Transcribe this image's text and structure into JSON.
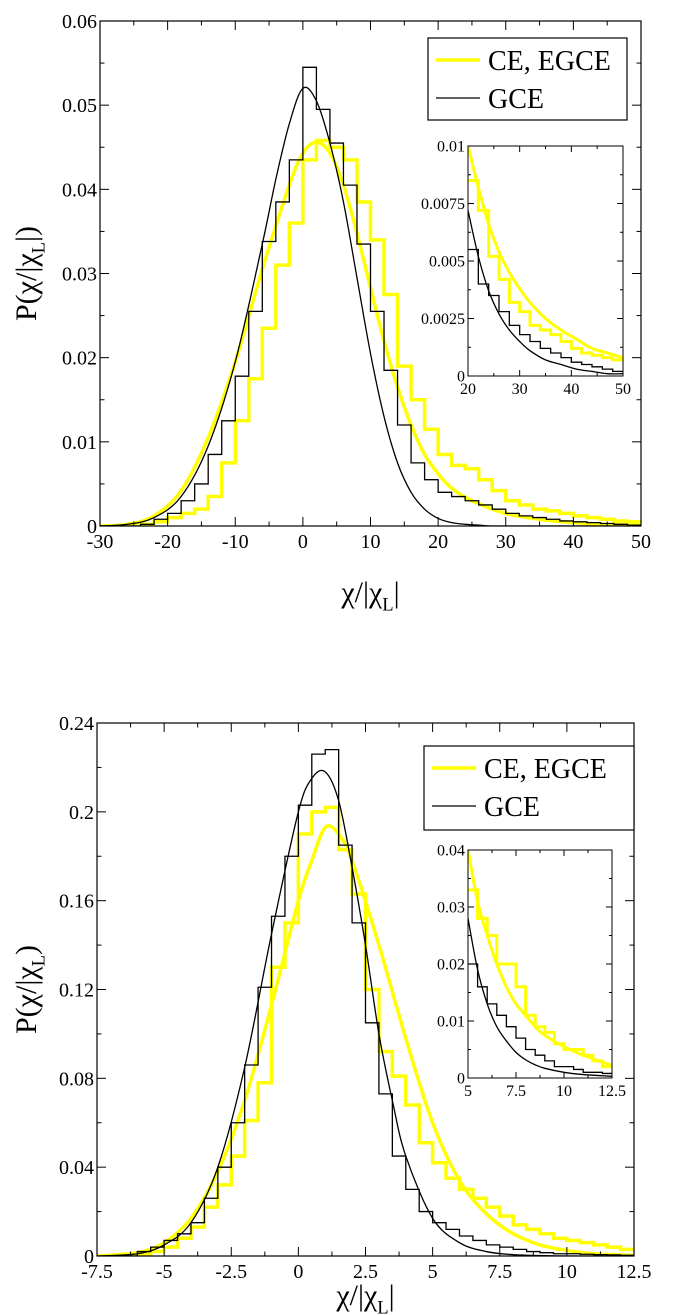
{
  "colors": {
    "ce_egce": "#ffff00",
    "gce": "#000000"
  },
  "chart_data": [
    {
      "type": "line",
      "xlabel": "χ/|χ_L|",
      "ylabel": "P(χ/|χ_L|)",
      "xlim": [
        -30,
        50
      ],
      "ylim": [
        0,
        0.06
      ],
      "x_ticks": [
        -30,
        -20,
        -10,
        0,
        10,
        20,
        30,
        40,
        50
      ],
      "x_tick_labels": [
        "-30",
        "-20",
        "-10",
        "0",
        "10",
        "20",
        "30",
        "40",
        "50"
      ],
      "y_ticks": [
        0,
        0.01,
        0.02,
        0.03,
        0.04,
        0.05,
        0.06
      ],
      "y_tick_labels": [
        "0",
        "0.01",
        "0.02",
        "0.03",
        "0.04",
        "0.05",
        "0.06"
      ],
      "legend": {
        "position": "top-right",
        "entries": [
          "CE, EGCE",
          "GCE"
        ]
      },
      "series": [
        {
          "name": "CE, EGCE",
          "kind": "histogram",
          "edges": [
            -30,
            -28,
            -26,
            -24,
            -22,
            -20,
            -18,
            -16,
            -14,
            -12,
            -10,
            -8,
            -6,
            -4,
            -2,
            0,
            2,
            4,
            6,
            8,
            10,
            12,
            14,
            16,
            18,
            20,
            22,
            24,
            26,
            28,
            30,
            32,
            34,
            36,
            38,
            40,
            42,
            44,
            46,
            48,
            50
          ],
          "values": [
            0,
            0,
            0,
            0.0002,
            0.0005,
            0.001,
            0.0015,
            0.002,
            0.0035,
            0.0075,
            0.0125,
            0.0175,
            0.0235,
            0.031,
            0.036,
            0.0435,
            0.0458,
            0.045,
            0.0435,
            0.0385,
            0.034,
            0.0275,
            0.019,
            0.015,
            0.0115,
            0.0085,
            0.0072,
            0.0068,
            0.0055,
            0.0042,
            0.003,
            0.0025,
            0.002,
            0.0018,
            0.0015,
            0.0012,
            0.001,
            0.0008,
            0.0006,
            0.0005
          ]
        },
        {
          "name": "CE, EGCE",
          "kind": "curve",
          "x": [
            -30,
            -26,
            -22,
            -18,
            -14,
            -10,
            -6,
            -2,
            0,
            2,
            4,
            6,
            8,
            10,
            12,
            14,
            16,
            18,
            20,
            22,
            25,
            30,
            35,
            40,
            45,
            50
          ],
          "y": [
            0,
            0.0002,
            0.0012,
            0.0042,
            0.0105,
            0.0195,
            0.0305,
            0.0405,
            0.0443,
            0.0456,
            0.0443,
            0.0405,
            0.0348,
            0.0283,
            0.022,
            0.0165,
            0.012,
            0.0085,
            0.0062,
            0.0045,
            0.003,
            0.0015,
            0.0008,
            0.0004,
            0.0002,
            0.0001
          ]
        },
        {
          "name": "GCE",
          "kind": "histogram",
          "edges": [
            -30,
            -28,
            -26,
            -24,
            -22,
            -20,
            -18,
            -16,
            -14,
            -12,
            -10,
            -8,
            -6,
            -4,
            -2,
            0,
            2,
            4,
            6,
            8,
            10,
            12,
            14,
            16,
            18,
            20,
            22,
            24,
            26,
            28,
            30,
            32,
            34,
            36,
            38,
            40,
            42,
            44,
            46,
            48,
            50
          ],
          "values": [
            0,
            0,
            0,
            0.0002,
            0.0008,
            0.0015,
            0.003,
            0.005,
            0.0085,
            0.0125,
            0.0178,
            0.0255,
            0.0338,
            0.0385,
            0.0435,
            0.0545,
            0.0495,
            0.0455,
            0.0405,
            0.0335,
            0.0255,
            0.0185,
            0.012,
            0.0075,
            0.0055,
            0.004,
            0.0035,
            0.003,
            0.0025,
            0.002,
            0.0015,
            0.0012,
            0.001,
            0.0008,
            0.0006,
            0.0005,
            0.0004,
            0.0003,
            0.0002,
            0.0001
          ]
        },
        {
          "name": "GCE",
          "kind": "curve",
          "x": [
            -30,
            -26,
            -22,
            -18,
            -14,
            -10,
            -6,
            -4,
            -2,
            0,
            2,
            4,
            6,
            8,
            10,
            12,
            14,
            16,
            18,
            20,
            22,
            24,
            26,
            28,
            30,
            35,
            40,
            50
          ],
          "y": [
            0,
            0.0002,
            0.001,
            0.0035,
            0.0095,
            0.0195,
            0.0335,
            0.0412,
            0.0478,
            0.052,
            0.0505,
            0.0455,
            0.0385,
            0.0295,
            0.0205,
            0.013,
            0.0075,
            0.004,
            0.002,
            0.0009,
            0.0004,
            0.0002,
            0.0001,
            0,
            0,
            0,
            0,
            0
          ]
        }
      ],
      "inset": {
        "xlim": [
          20,
          50
        ],
        "ylim": [
          0,
          0.01
        ],
        "x_ticks": [
          20,
          30,
          40,
          50
        ],
        "x_tick_labels": [
          "20",
          "30",
          "40",
          "50"
        ],
        "y_ticks": [
          0,
          0.0025,
          0.005,
          0.0075,
          0.01
        ],
        "y_tick_labels": [
          "0",
          "0.0025",
          "0.005",
          "0.0075",
          "0.01"
        ],
        "series": [
          {
            "name": "CE, EGCE",
            "kind": "histogram",
            "edges": [
              20,
              22,
              24,
              26,
              28,
              30,
              32,
              34,
              36,
              38,
              40,
              42,
              44,
              46,
              48,
              50
            ],
            "values": [
              0.0085,
              0.0072,
              0.0052,
              0.0042,
              0.0032,
              0.0028,
              0.0022,
              0.002,
              0.0018,
              0.0015,
              0.0012,
              0.001,
              0.0009,
              0.0008,
              0.0007
            ]
          },
          {
            "name": "CE, EGCE",
            "kind": "curve",
            "x": [
              20,
              22,
              24,
              26,
              28,
              30,
              32,
              35,
              38,
              41,
              44,
              47,
              50
            ],
            "y": [
              0.01,
              0.0082,
              0.0066,
              0.0054,
              0.0045,
              0.0038,
              0.0032,
              0.0025,
              0.002,
              0.0016,
              0.0012,
              0.001,
              0.0008
            ]
          },
          {
            "name": "GCE",
            "kind": "histogram",
            "edges": [
              20,
              22,
              24,
              26,
              28,
              30,
              32,
              34,
              36,
              38,
              40,
              42,
              44,
              46,
              48,
              50
            ],
            "values": [
              0.0055,
              0.004,
              0.0035,
              0.0028,
              0.0022,
              0.0018,
              0.0015,
              0.0012,
              0.001,
              0.0008,
              0.0006,
              0.0005,
              0.0004,
              0.0003,
              0.0002
            ]
          },
          {
            "name": "GCE",
            "kind": "curve",
            "x": [
              20,
              22,
              24,
              26,
              28,
              30,
              32,
              35,
              38,
              41,
              44,
              47,
              50
            ],
            "y": [
              0.0072,
              0.0052,
              0.0037,
              0.0027,
              0.002,
              0.0015,
              0.0011,
              0.0007,
              0.0005,
              0.0003,
              0.0002,
              0.0001,
              0.0001
            ]
          }
        ]
      }
    },
    {
      "type": "line",
      "xlabel": "χ/|χ_L|",
      "ylabel": "P(χ/|χ_L)",
      "xlim": [
        -7.5,
        12.5
      ],
      "ylim": [
        0,
        0.24
      ],
      "x_ticks": [
        -7.5,
        -5,
        -2.5,
        0,
        2.5,
        5,
        7.5,
        10,
        12.5
      ],
      "x_tick_labels": [
        "-7.5",
        "-5",
        "-2.5",
        "0",
        "2.5",
        "5",
        "7.5",
        "10",
        "12.5"
      ],
      "y_ticks": [
        0,
        0.04,
        0.08,
        0.12,
        0.16,
        0.2,
        0.24
      ],
      "y_tick_labels": [
        "0",
        "0.04",
        "0.08",
        "0.12",
        "0.16",
        "0.2",
        "0.24"
      ],
      "legend": {
        "position": "top-right",
        "entries": [
          "CE, EGCE",
          "GCE"
        ]
      },
      "series": [
        {
          "name": "CE, EGCE",
          "kind": "histogram",
          "edges": [
            -7.5,
            -7,
            -6.5,
            -6,
            -5.5,
            -5,
            -4.5,
            -4,
            -3.5,
            -3,
            -2.5,
            -2,
            -1.5,
            -1,
            -0.5,
            0,
            0.5,
            1,
            1.5,
            2,
            2.5,
            3,
            3.5,
            4,
            4.5,
            5,
            5.5,
            6,
            6.5,
            7,
            7.5,
            8,
            8.5,
            9,
            9.5,
            10,
            10.5,
            11,
            11.5,
            12,
            12.5
          ],
          "values": [
            0,
            0,
            0,
            0.001,
            0.002,
            0.004,
            0.008,
            0.013,
            0.022,
            0.032,
            0.045,
            0.061,
            0.078,
            0.13,
            0.15,
            0.19,
            0.2,
            0.202,
            0.183,
            0.163,
            0.12,
            0.092,
            0.081,
            0.068,
            0.051,
            0.042,
            0.035,
            0.03,
            0.026,
            0.022,
            0.018,
            0.014,
            0.012,
            0.01,
            0.008,
            0.007,
            0.006,
            0.005,
            0.004,
            0.003
          ]
        },
        {
          "name": "CE, EGCE",
          "kind": "curve",
          "x": [
            -7.5,
            -6,
            -5,
            -4,
            -3,
            -2,
            -1,
            0,
            0.5,
            1,
            1.5,
            2,
            3,
            4,
            5,
            6,
            7,
            8,
            9,
            10,
            11,
            12.5
          ],
          "y": [
            0,
            0.0015,
            0.006,
            0.017,
            0.038,
            0.07,
            0.113,
            0.16,
            0.178,
            0.193,
            0.19,
            0.178,
            0.14,
            0.098,
            0.06,
            0.034,
            0.019,
            0.01,
            0.005,
            0.0025,
            0.001,
            0.0003
          ]
        },
        {
          "name": "GCE",
          "kind": "histogram",
          "edges": [
            -7.5,
            -7,
            -6.5,
            -6,
            -5.5,
            -5,
            -4.5,
            -4,
            -3.5,
            -3,
            -2.5,
            -2,
            -1.5,
            -1,
            -0.5,
            0,
            0.5,
            1,
            1.5,
            2,
            2.5,
            3,
            3.5,
            4,
            4.5,
            5,
            5.5,
            6,
            6.5,
            7,
            7.5,
            8,
            8.5,
            9,
            9.5,
            10,
            10.5,
            11,
            11.5,
            12,
            12.5
          ],
          "values": [
            0,
            0,
            0,
            0.002,
            0.004,
            0.007,
            0.01,
            0.015,
            0.026,
            0.04,
            0.06,
            0.086,
            0.121,
            0.153,
            0.18,
            0.203,
            0.226,
            0.228,
            0.185,
            0.15,
            0.105,
            0.073,
            0.045,
            0.03,
            0.02,
            0.015,
            0.012,
            0.009,
            0.007,
            0.005,
            0.004,
            0.003,
            0.002,
            0.0015,
            0.001,
            0.001,
            0.0008,
            0.0006,
            0.0005,
            0.0003
          ]
        },
        {
          "name": "GCE",
          "kind": "curve",
          "x": [
            -7.5,
            -6,
            -5,
            -4,
            -3,
            -2,
            -1,
            0,
            0.5,
            1,
            1.5,
            2,
            2.5,
            3,
            3.5,
            4,
            5,
            6,
            7,
            8,
            9,
            10,
            12.5
          ],
          "y": [
            0,
            0.001,
            0.005,
            0.015,
            0.04,
            0.085,
            0.145,
            0.2,
            0.215,
            0.218,
            0.205,
            0.175,
            0.14,
            0.1,
            0.07,
            0.045,
            0.017,
            0.006,
            0.002,
            0.0006,
            0.0002,
            0,
            0
          ]
        }
      ],
      "inset": {
        "xlim": [
          5,
          12.5
        ],
        "ylim": [
          0,
          0.04
        ],
        "x_ticks": [
          5,
          7.5,
          10,
          12.5
        ],
        "x_tick_labels": [
          "5",
          "7.5",
          "10",
          "12.5"
        ],
        "y_ticks": [
          0,
          0.01,
          0.02,
          0.03,
          0.04
        ],
        "y_tick_labels": [
          "0",
          "0.01",
          "0.02",
          "0.03",
          "0.04"
        ],
        "series": [
          {
            "name": "CE, EGCE",
            "kind": "histogram",
            "edges": [
              5,
              5.5,
              6,
              6.5,
              7,
              7.5,
              8,
              8.5,
              9,
              9.5,
              10,
              10.5,
              11,
              11.5,
              12,
              12.5
            ],
            "values": [
              0.033,
              0.028,
              0.025,
              0.02,
              0.02,
              0.016,
              0.011,
              0.009,
              0.008,
              0.006,
              0.005,
              0.005,
              0.004,
              0.003,
              0.002
            ]
          },
          {
            "name": "CE, EGCE",
            "kind": "curve",
            "x": [
              5,
              5.5,
              6,
              6.5,
              7,
              7.5,
              8,
              8.5,
              9,
              10,
              11,
              12,
              12.5
            ],
            "y": [
              0.04,
              0.031,
              0.025,
              0.02,
              0.016,
              0.013,
              0.011,
              0.009,
              0.0075,
              0.0055,
              0.004,
              0.0028,
              0.0022
            ]
          },
          {
            "name": "GCE",
            "kind": "histogram",
            "edges": [
              5,
              5.5,
              6,
              6.5,
              7,
              7.5,
              8,
              8.5,
              9,
              9.5,
              10,
              10.5,
              11,
              11.5,
              12,
              12.5
            ],
            "values": [
              0.02,
              0.016,
              0.013,
              0.011,
              0.009,
              0.007,
              0.005,
              0.004,
              0.003,
              0.002,
              0.002,
              0.0015,
              0.001,
              0.001,
              0.0008
            ]
          },
          {
            "name": "GCE",
            "kind": "curve",
            "x": [
              5,
              5.5,
              6,
              6.5,
              7,
              7.5,
              8,
              8.5,
              9,
              10,
              11,
              12,
              12.5
            ],
            "y": [
              0.028,
              0.019,
              0.013,
              0.009,
              0.0065,
              0.0045,
              0.0032,
              0.0023,
              0.0017,
              0.001,
              0.0006,
              0.0004,
              0.0003
            ]
          }
        ]
      }
    }
  ]
}
